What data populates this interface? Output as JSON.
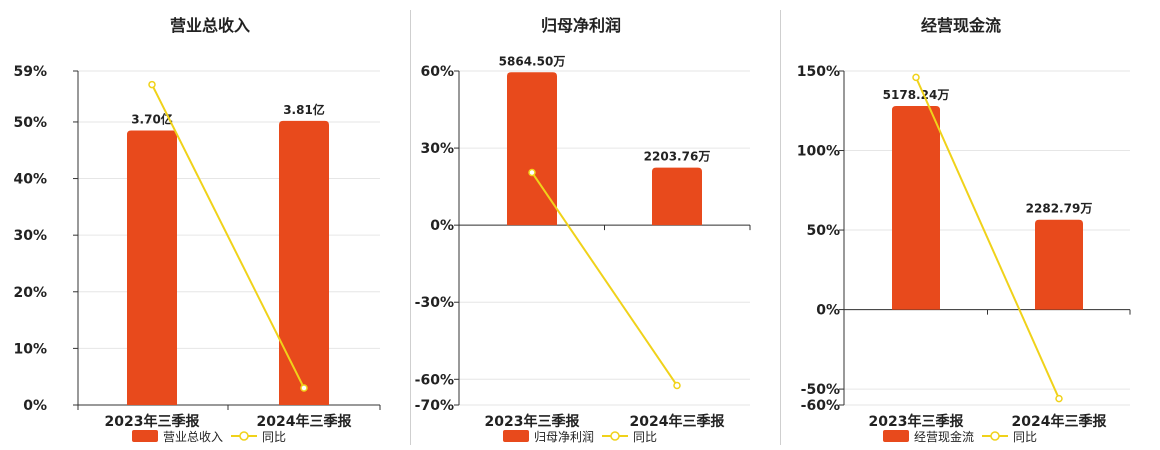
{
  "colors": {
    "bar": "#e84a1c",
    "line": "#f0d21a",
    "grid": "#e6e6e6",
    "axis": "#333333",
    "text": "#222222"
  },
  "chart_data": [
    {
      "type": "bar",
      "title": "营业总收入",
      "categories": [
        "2023年三季报",
        "2024年三季报"
      ],
      "bar_labels": [
        "3.70亿",
        "3.81亿"
      ],
      "y_ticks": [
        "0%",
        "10%",
        "20%",
        "30%",
        "40%",
        "50%",
        "59%"
      ],
      "ylim": [
        0,
        59
      ],
      "series": [
        {
          "name": "营业总收入",
          "type": "bar",
          "values": [
            48.5,
            50.2
          ]
        },
        {
          "name": "同比",
          "type": "line",
          "values": [
            56.6,
            3.0
          ]
        }
      ],
      "legend": {
        "position": "bottom"
      }
    },
    {
      "type": "bar",
      "title": "归母净利润",
      "categories": [
        "2023年三季报",
        "2024年三季报"
      ],
      "bar_labels": [
        "5864.50万",
        "2203.76万"
      ],
      "y_ticks": [
        "-70%",
        "-60%",
        "-30%",
        "0%",
        "30%",
        "60%"
      ],
      "ylim": [
        -70,
        60
      ],
      "series": [
        {
          "name": "归母净利润",
          "type": "bar",
          "values": [
            59.5,
            22.4
          ]
        },
        {
          "name": "同比",
          "type": "line",
          "values": [
            20.5,
            -62.4
          ]
        }
      ],
      "legend": {
        "position": "bottom"
      }
    },
    {
      "type": "bar",
      "title": "经营现金流",
      "categories": [
        "2023年三季报",
        "2024年三季报"
      ],
      "bar_labels": [
        "5178.24万",
        "2282.79万"
      ],
      "y_ticks": [
        "-60%",
        "-50%",
        "0%",
        "50%",
        "100%",
        "150%"
      ],
      "ylim": [
        -60,
        150
      ],
      "series": [
        {
          "name": "经营现金流",
          "type": "bar",
          "values": [
            128,
            56.5
          ]
        },
        {
          "name": "同比",
          "type": "line",
          "values": [
            146,
            -56
          ]
        }
      ],
      "legend": {
        "position": "bottom"
      }
    }
  ]
}
